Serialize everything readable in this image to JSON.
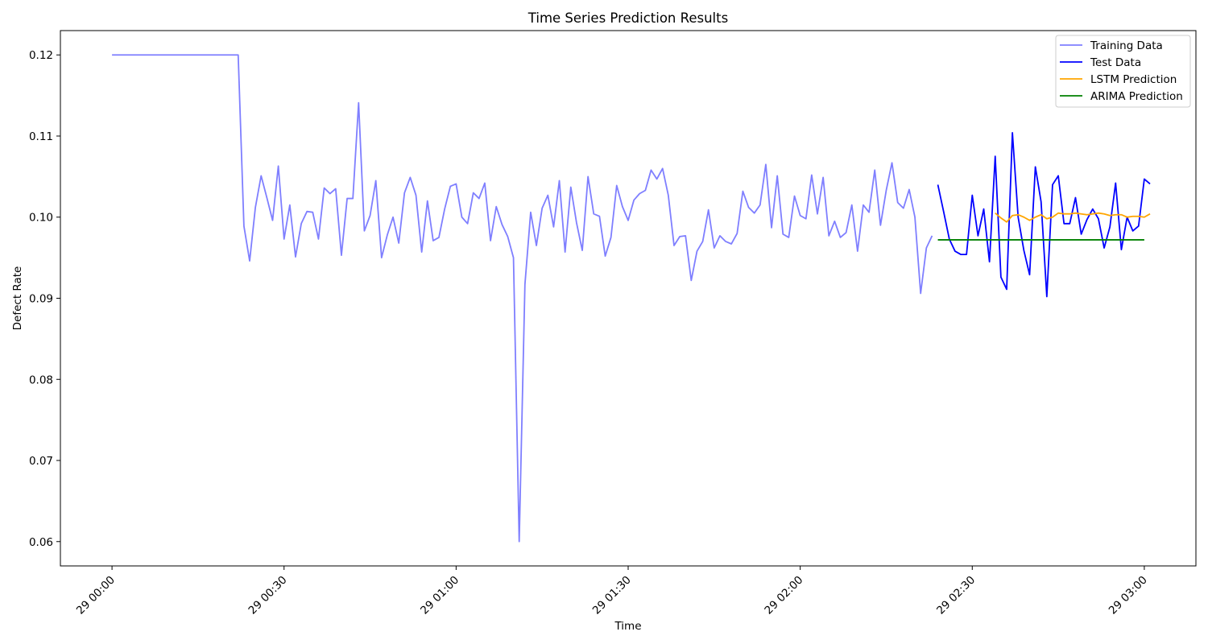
{
  "chart_data": {
    "type": "line",
    "title": "Time Series Prediction Results",
    "xlabel": "Time",
    "ylabel": "Defect Rate",
    "ylim": [
      0.057,
      0.123
    ],
    "xlim": [
      "29 23:51",
      "29 03:09"
    ],
    "grid": false,
    "legend_position": "top-right",
    "x_ticks": [
      "29 00:00",
      "29 00:30",
      "29 01:00",
      "29 01:30",
      "29 02:00",
      "29 02:30",
      "29 03:00"
    ],
    "y_ticks": [
      "0.06",
      "0.07",
      "0.08",
      "0.09",
      "0.10",
      "0.11",
      "0.12"
    ],
    "series": [
      {
        "name": "Training Data",
        "color": "#7f7fff",
        "x_start": "29 00:00",
        "x_step_minutes": 1,
        "y": [
          0.12,
          0.12,
          0.12,
          0.12,
          0.12,
          0.12,
          0.12,
          0.12,
          0.12,
          0.12,
          0.12,
          0.12,
          0.12,
          0.12,
          0.12,
          0.12,
          0.12,
          0.12,
          0.12,
          0.12,
          0.12,
          0.12,
          0.12,
          0.0989,
          0.0946,
          0.1012,
          0.1051,
          0.1024,
          0.0996,
          0.1063,
          0.0973,
          0.1015,
          0.0951,
          0.0992,
          0.1007,
          0.1006,
          0.0973,
          0.1036,
          0.1029,
          0.1035,
          0.0953,
          0.1023,
          0.1023,
          0.1141,
          0.0983,
          0.1002,
          0.1045,
          0.095,
          0.0978,
          0.1,
          0.0968,
          0.103,
          0.1049,
          0.1027,
          0.0957,
          0.102,
          0.0971,
          0.0975,
          0.101,
          0.1038,
          0.1041,
          0.1,
          0.0992,
          0.103,
          0.1023,
          0.1042,
          0.0971,
          0.1013,
          0.0991,
          0.0976,
          0.095,
          0.06,
          0.0917,
          0.1006,
          0.0965,
          0.1011,
          0.1027,
          0.0988,
          0.1045,
          0.0957,
          0.1037,
          0.0993,
          0.0959,
          0.105,
          0.1004,
          0.1001,
          0.0952,
          0.0975,
          0.1039,
          0.1013,
          0.0996,
          0.1021,
          0.1029,
          0.1033,
          0.1058,
          0.1047,
          0.106,
          0.1027,
          0.0965,
          0.0976,
          0.0977,
          0.0922,
          0.0958,
          0.097,
          0.1009,
          0.0962,
          0.0977,
          0.097,
          0.0967,
          0.098,
          0.1032,
          0.1012,
          0.1005,
          0.1015,
          0.1065,
          0.0987,
          0.1051,
          0.0979,
          0.0975,
          0.1026,
          0.1002,
          0.0998,
          0.1052,
          0.1004,
          0.1049,
          0.0977,
          0.0995,
          0.0975,
          0.0981,
          0.1015,
          0.0958,
          0.1015,
          0.1006,
          0.1058,
          0.099,
          0.1033,
          0.1067,
          0.1018,
          0.1011,
          0.1034,
          0.1,
          0.0906,
          0.0962,
          0.0977
        ]
      },
      {
        "name": "Test Data",
        "color": "#0000ff",
        "x_start": "29 02:24",
        "x_step_minutes": 1,
        "y": [
          0.104,
          0.1007,
          0.0973,
          0.0958,
          0.0954,
          0.0954,
          0.1027,
          0.0977,
          0.101,
          0.0945,
          0.1075,
          0.0926,
          0.0911,
          0.1104,
          0.1,
          0.0959,
          0.0929,
          0.1062,
          0.1019,
          0.0902,
          0.104,
          0.1051,
          0.0992,
          0.0992,
          0.1024,
          0.0979,
          0.0997,
          0.101,
          0.0998,
          0.0962,
          0.0988,
          0.1042,
          0.096,
          0.1,
          0.0983,
          0.0989,
          0.1047,
          0.1041
        ]
      },
      {
        "name": "LSTM Prediction",
        "color": "#ffa500",
        "x_start": "29 02:34",
        "x_step_minutes": 1,
        "y": [
          0.1005,
          0.0999,
          0.0994,
          0.1002,
          0.1003,
          0.1,
          0.0996,
          0.1,
          0.1003,
          0.0998,
          0.1,
          0.1005,
          0.1004,
          0.1004,
          0.1005,
          0.1004,
          0.1003,
          0.1004,
          0.1005,
          0.1004,
          0.1002,
          0.1003,
          0.1003,
          0.1,
          0.1001,
          0.1001,
          0.1,
          0.1004
        ]
      },
      {
        "name": "ARIMA Prediction",
        "color": "#008000",
        "x_start": "29 02:24",
        "x_step_minutes": 1,
        "y": [
          0.0972,
          0.0972,
          0.0972,
          0.0972,
          0.0972,
          0.0972,
          0.0972,
          0.0972,
          0.0972,
          0.0972,
          0.0972,
          0.0972,
          0.0972,
          0.0972,
          0.0972,
          0.0972,
          0.0972,
          0.0972,
          0.0972,
          0.0972,
          0.0972,
          0.0972,
          0.0972,
          0.0972,
          0.0972,
          0.0972,
          0.0972,
          0.0972,
          0.0972,
          0.0972,
          0.0972,
          0.0972,
          0.0972,
          0.0972,
          0.0972,
          0.0972,
          0.0972
        ]
      }
    ]
  }
}
